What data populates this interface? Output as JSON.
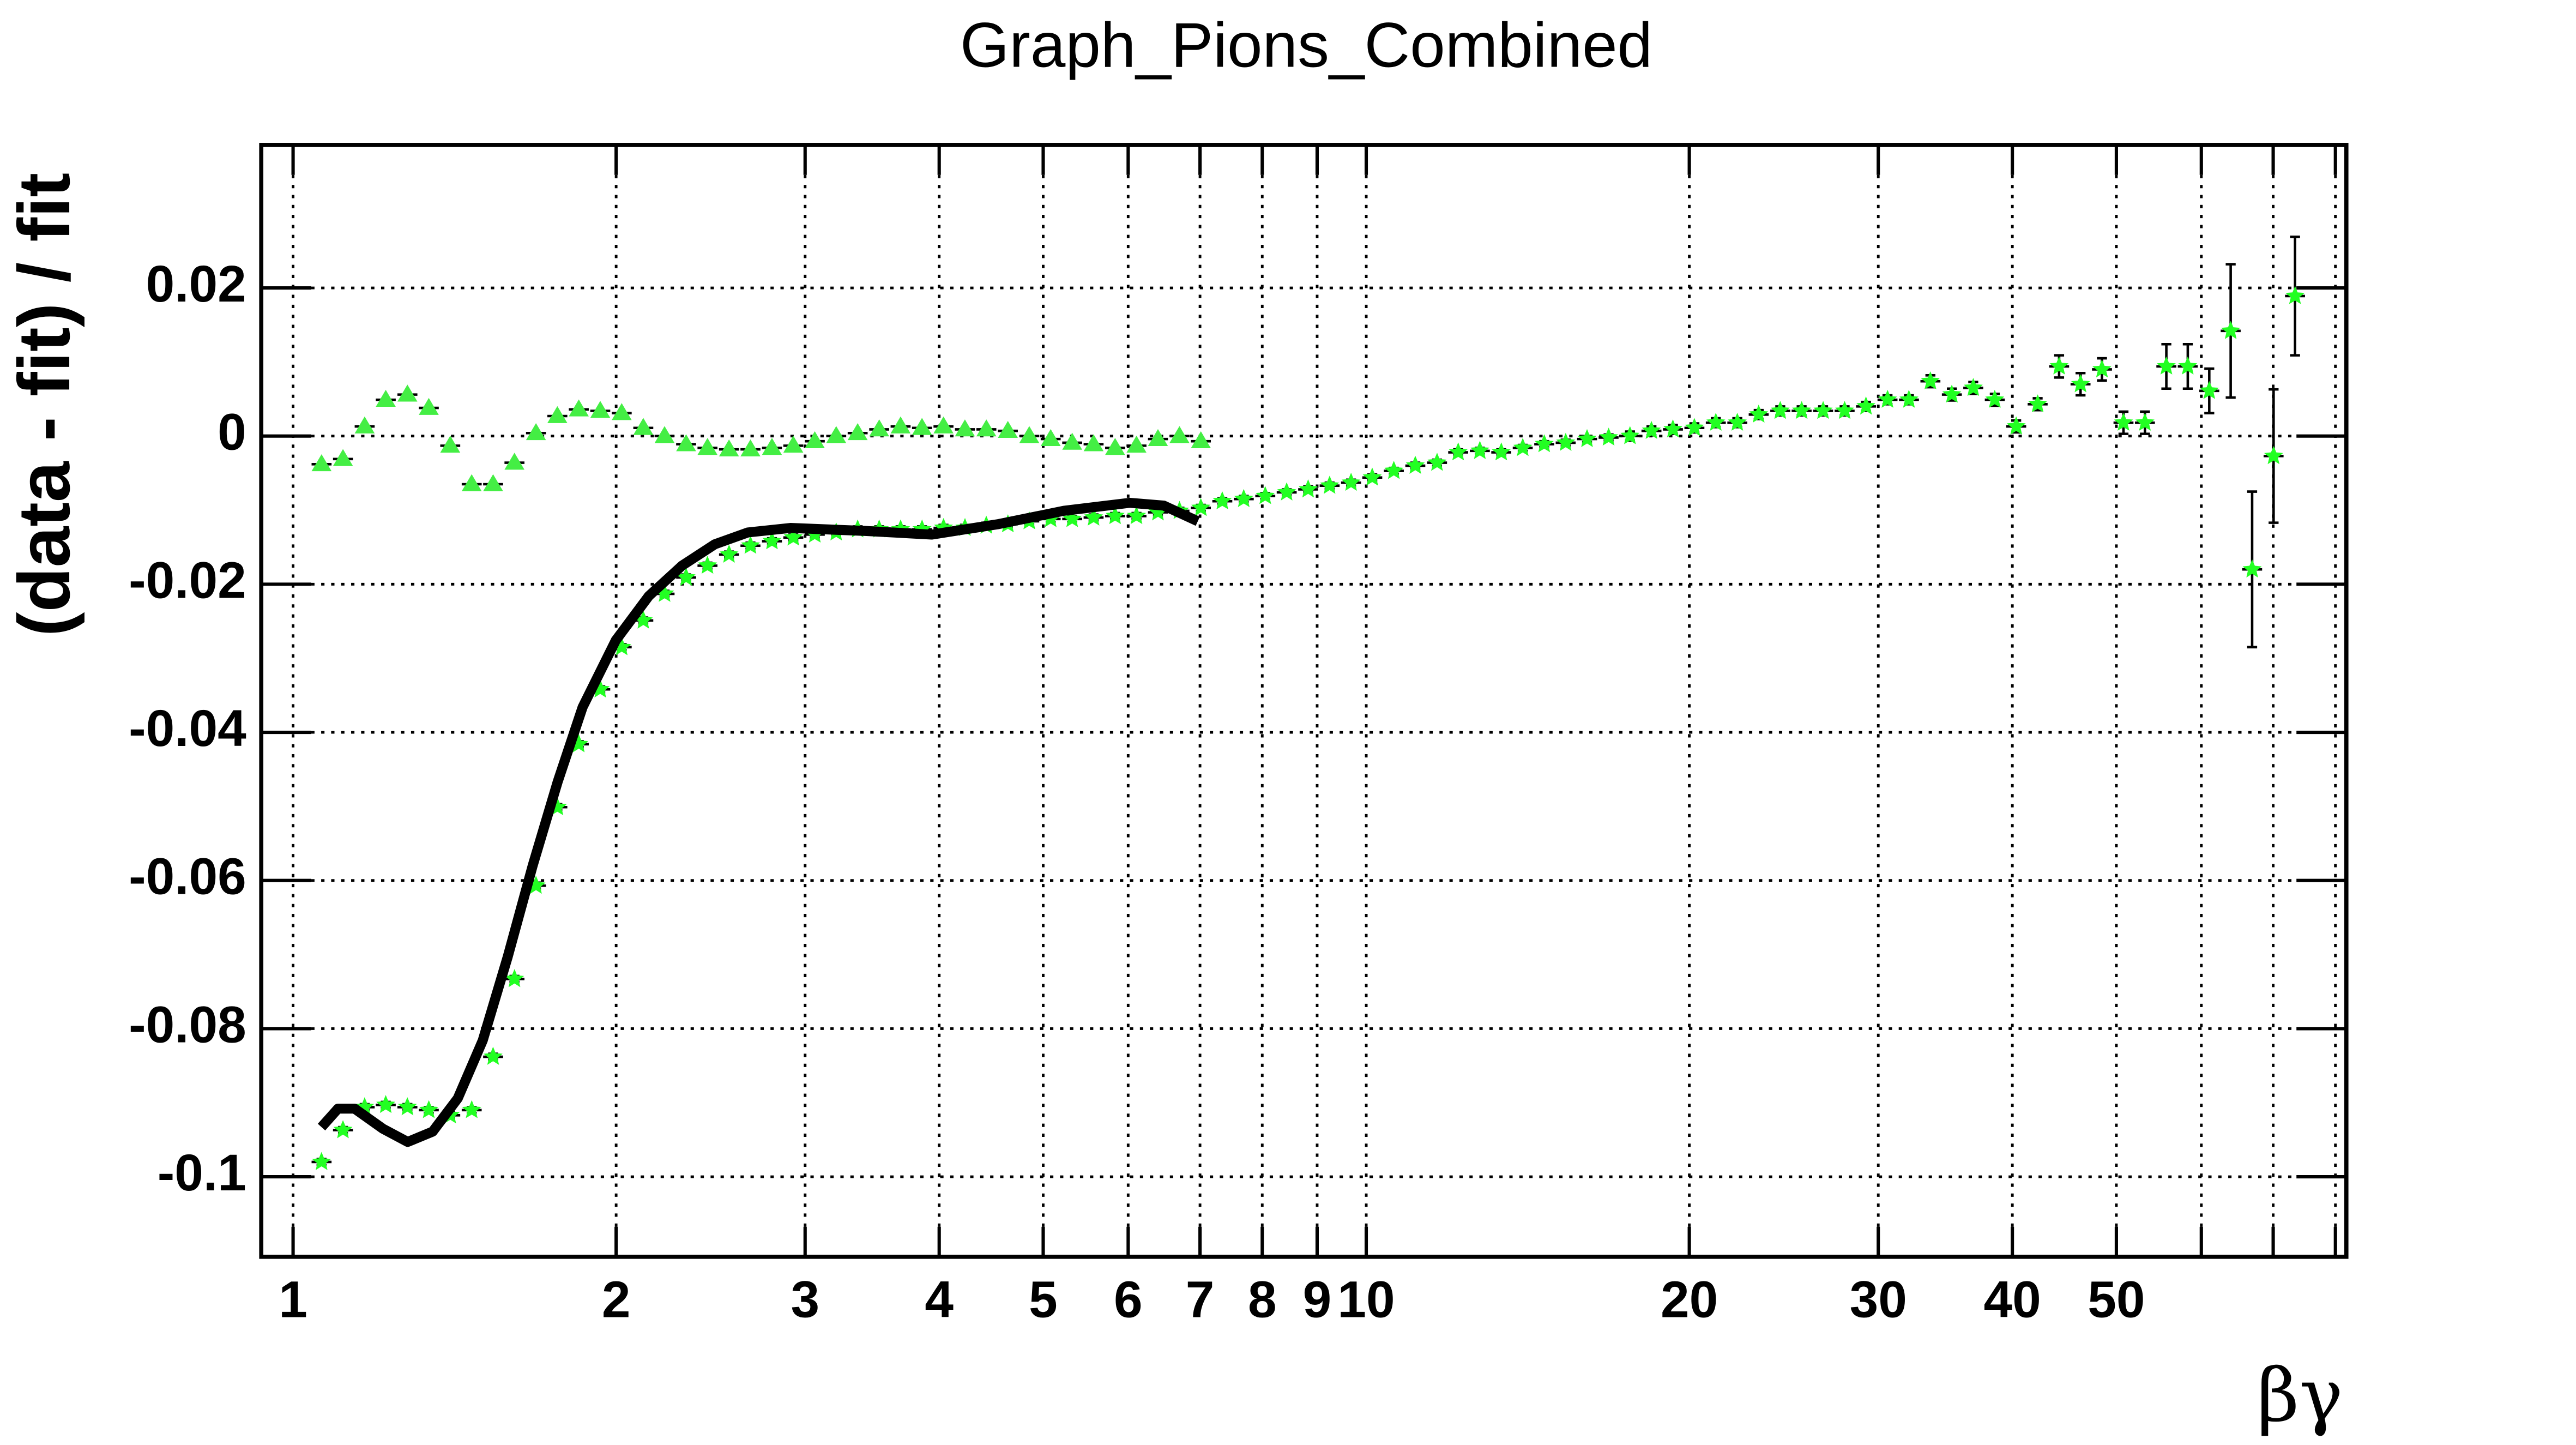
{
  "chart_data": {
    "type": "scatter",
    "title": "Graph_Pions_Combined",
    "y_label": "(data - fit) / fit",
    "x_label": "βγ",
    "xscale": "log",
    "xlim": [
      0.934,
      81.9
    ],
    "ylim": [
      -0.1108,
      0.0393
    ],
    "xticks": [
      1,
      2,
      3,
      4,
      5,
      6,
      7,
      8,
      9,
      10,
      20,
      30,
      40,
      50,
      {
        "value": 60,
        "label": null
      },
      {
        "value": 70,
        "label": null
      },
      {
        "value": 80,
        "label": null
      }
    ],
    "yticks": [
      0.02,
      0,
      -0.02,
      -0.04,
      -0.06,
      -0.08,
      -0.1
    ],
    "grid": true,
    "series": [
      {
        "color": "#44ee44",
        "marker": "triangle",
        "x": [
          1.063,
          1.113,
          1.166,
          1.22,
          1.278,
          1.338,
          1.401,
          1.467,
          1.536,
          1.608,
          1.684,
          1.763,
          1.846,
          1.933,
          2.024,
          2.12,
          2.219,
          2.324,
          2.433,
          2.548,
          2.668,
          2.794,
          2.925,
          3.063,
          3.207,
          3.358,
          3.517,
          3.682,
          3.855,
          4.037,
          4.227,
          4.426,
          4.635,
          4.853,
          5.081,
          5.321,
          5.571,
          5.834,
          6.108,
          6.396,
          6.698,
          7.013
        ],
        "values": [
          -0.0038,
          -0.0031,
          0.0013,
          0.0049,
          0.0056,
          0.0038,
          -0.0013,
          -0.0065,
          -0.0065,
          -0.0036,
          0.0004,
          0.0027,
          0.0036,
          0.0034,
          0.0031,
          0.0011,
          0,
          -0.0011,
          -0.0016,
          -0.0018,
          -0.0018,
          -0.0016,
          -0.0013,
          -0.0007,
          0,
          0.0004,
          0.0009,
          0.0013,
          0.0011,
          0.0013,
          0.0009,
          0.0009,
          0.0007,
          0,
          -0.0004,
          -0.0009,
          -0.0011,
          -0.0016,
          -0.0013,
          -0.0004,
          0,
          -0.0007
        ]
      },
      {
        "color": "#22ff22",
        "marker": "star",
        "x": [
          1.063,
          1.113,
          1.166,
          1.22,
          1.278,
          1.338,
          1.401,
          1.467,
          1.536,
          1.608,
          1.684,
          1.763,
          1.846,
          1.933,
          2.024,
          2.12,
          2.219,
          2.324,
          2.433,
          2.548,
          2.668,
          2.794,
          2.925,
          3.063,
          3.207,
          3.358,
          3.517,
          3.682,
          3.855,
          4.037,
          4.227,
          4.426,
          4.635,
          4.853,
          5.081,
          5.321,
          5.571,
          5.834,
          6.108,
          6.396,
          6.698,
          7.013,
          7.343,
          7.689,
          8.052,
          8.431,
          8.828,
          9.244,
          9.679,
          10.13,
          10.61,
          11.11,
          11.64,
          12.18,
          12.76,
          13.36,
          13.99,
          14.65,
          15.34,
          16.06,
          16.82,
          17.61,
          18.44,
          19.31,
          20.22,
          21.17,
          22.17,
          23.21,
          24.31,
          25.45,
          26.65,
          27.91,
          29.22,
          30.6,
          32.04,
          33.55,
          35.13,
          36.78,
          38.52,
          40.33,
          42.23,
          44.22,
          46.3,
          48.48,
          50.77,
          53.16,
          55.66,
          58.28,
          61.03,
          63.9,
          66.91,
          70.06,
          73.36
        ],
        "values": [
          -0.098,
          -0.0937,
          -0.0906,
          -0.0903,
          -0.0906,
          -0.091,
          -0.0917,
          -0.091,
          -0.0838,
          -0.0733,
          -0.0607,
          -0.0501,
          -0.0416,
          -0.0342,
          -0.0285,
          -0.0249,
          -0.0213,
          -0.0191,
          -0.0175,
          -0.016,
          -0.0148,
          -0.0142,
          -0.0137,
          -0.0133,
          -0.013,
          -0.0126,
          -0.0126,
          -0.0126,
          -0.0126,
          -0.0124,
          -0.0124,
          -0.0121,
          -0.0119,
          -0.0115,
          -0.0112,
          -0.0112,
          -0.011,
          -0.0108,
          -0.0108,
          -0.0103,
          -0.0101,
          -0.0097,
          -0.0088,
          -0.0085,
          -0.0081,
          -0.0076,
          -0.0072,
          -0.0067,
          -0.0063,
          -0.0056,
          -0.0047,
          -0.004,
          -0.0036,
          -0.0022,
          -0.002,
          -0.0022,
          -0.0016,
          -0.0011,
          -0.0009,
          -0.0004,
          -0.0002,
          0,
          0.0007,
          0.0009,
          0.0011,
          0.0018,
          0.0018,
          0.0029,
          0.0034,
          0.0034,
          0.0034,
          0.0034,
          0.004,
          0.0049,
          0.0049,
          0.0074,
          0.0056,
          0.0065,
          0.0049,
          0.0013,
          0.0043,
          0.0094,
          0.007,
          0.009,
          0.0018,
          0.0018,
          0.0094,
          0.0094,
          0.0061,
          0.0142,
          -0.018,
          -0.0027,
          0.0189
        ],
        "errors": [
          0.0004,
          0.0004,
          0.0004,
          0.0004,
          0.0004,
          0.0004,
          0.0004,
          0.0004,
          0.0004,
          0.0004,
          0.0004,
          0.0004,
          0.0004,
          0.0004,
          0.0004,
          0.0004,
          0.0004,
          0.0004,
          0.0004,
          0.0004,
          0.0004,
          0.0004,
          0.0004,
          0.0004,
          0.0004,
          0.0004,
          0.0004,
          0.0004,
          0.0004,
          0.0004,
          0.0004,
          0.0004,
          0.0004,
          0.0004,
          0.0004,
          0.0004,
          0.0004,
          0.0004,
          0.0004,
          0.0004,
          0.0004,
          0.0004,
          0.0004,
          0.0004,
          0.0004,
          0.0004,
          0.0004,
          0.0004,
          0.0004,
          0.0004,
          0.0004,
          0.0004,
          0.0004,
          0.0004,
          0.0004,
          0.0004,
          0.0004,
          0.0004,
          0.0004,
          0.0004,
          0.0004,
          0.0006,
          0.0006,
          0.0006,
          0.0006,
          0.0006,
          0.0006,
          0.0006,
          0.0006,
          0.0006,
          0.0006,
          0.0006,
          0.0006,
          0.0006,
          0.0006,
          0.0008,
          0.0008,
          0.0008,
          0.0008,
          0.0008,
          0.0008,
          0.0015,
          0.0015,
          0.0015,
          0.0015,
          0.0015,
          0.003,
          0.003,
          0.003,
          0.009,
          0.0105,
          0.009,
          0.008
        ]
      },
      {
        "color": "#000000",
        "marker": "line",
        "x": [
          1.063,
          1.101,
          1.141,
          1.212,
          1.279,
          1.349,
          1.424,
          1.502,
          1.585,
          1.672,
          1.764,
          1.861,
          1.998,
          2.145,
          2.303,
          2.472,
          2.654,
          2.907,
          3.414,
          3.935,
          4.535,
          5.226,
          6.022,
          6.478,
          6.968
        ],
        "values": [
          -0.0933,
          -0.0908,
          -0.0908,
          -0.0935,
          -0.0953,
          -0.0939,
          -0.0894,
          -0.0816,
          -0.0703,
          -0.058,
          -0.0467,
          -0.0366,
          -0.0276,
          -0.0216,
          -0.0175,
          -0.0146,
          -0.013,
          -0.0124,
          -0.0128,
          -0.0133,
          -0.0119,
          -0.0101,
          -0.009,
          -0.0094,
          -0.0115
        ]
      }
    ]
  }
}
